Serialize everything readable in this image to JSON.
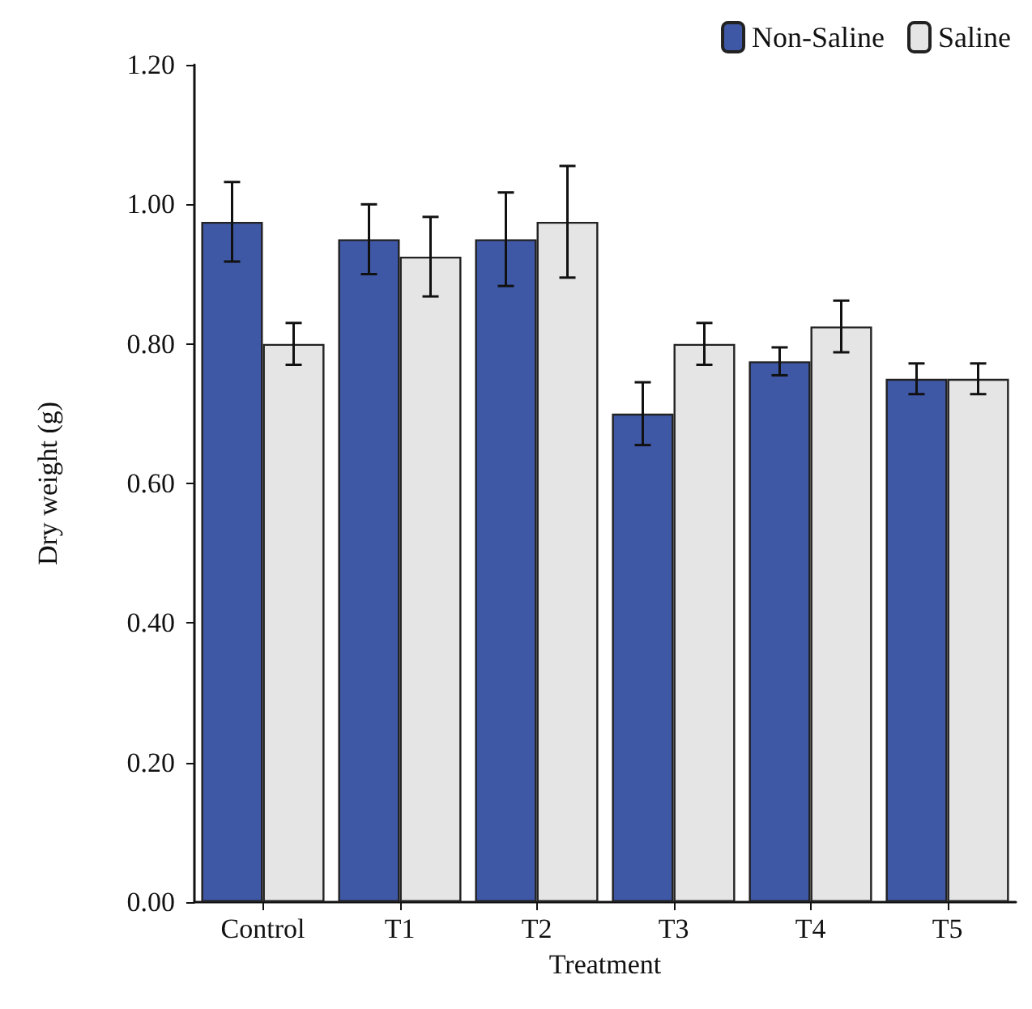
{
  "chart_data": {
    "type": "bar",
    "xlabel": "Treatment",
    "ylabel": "Dry weight (g)",
    "categories": [
      "Control",
      "T1",
      "T2",
      "T3",
      "T4",
      "T5"
    ],
    "series": [
      {
        "name": "Non-Saline",
        "color": "#3f58a6",
        "values": [
          0.975,
          0.95,
          0.95,
          0.7,
          0.775,
          0.75
        ],
        "errors": [
          0.057,
          0.05,
          0.067,
          0.045,
          0.02,
          0.022
        ]
      },
      {
        "name": "Saline",
        "color": "#e5e5e5",
        "values": [
          0.8,
          0.925,
          0.975,
          0.8,
          0.825,
          0.75
        ],
        "errors": [
          0.03,
          0.057,
          0.08,
          0.03,
          0.037,
          0.022
        ]
      }
    ],
    "ylim": [
      0,
      1.2
    ],
    "yticks": [
      {
        "value": 0,
        "label": "0.00"
      },
      {
        "value": 0.2,
        "label": "0.20"
      },
      {
        "value": 0.4,
        "label": "0.40"
      },
      {
        "value": 0.6,
        "label": "0.60"
      },
      {
        "value": 0.8,
        "label": "0.80"
      },
      {
        "value": 1.0,
        "label": "1.00"
      },
      {
        "value": 1.2,
        "label": "1.20"
      }
    ],
    "grid": false,
    "legend": "top right"
  }
}
